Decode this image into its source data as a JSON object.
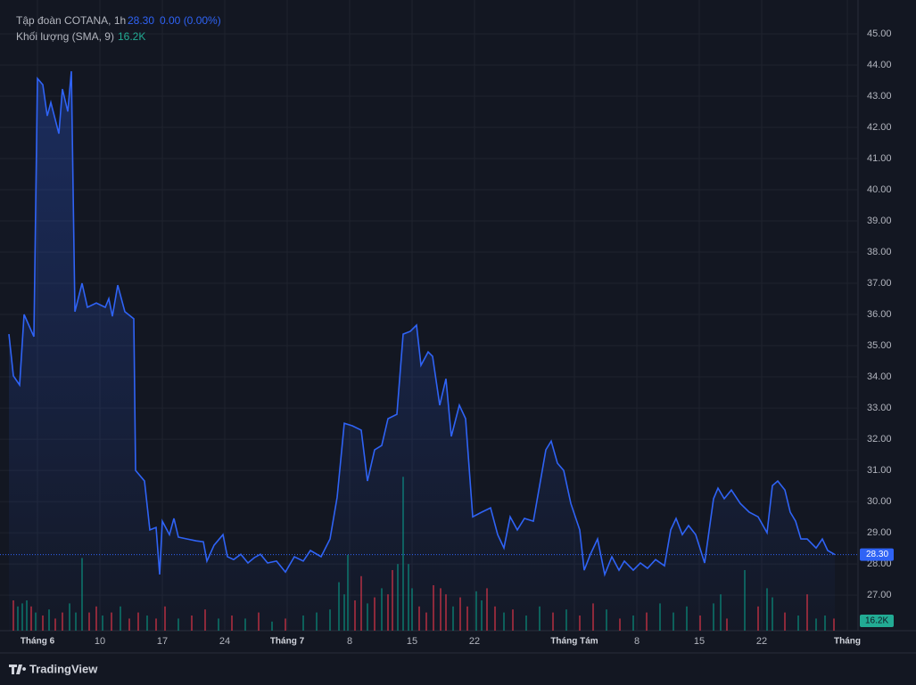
{
  "chart_data": {
    "type": "line",
    "title": "Tập đoàn COTANA, 1h",
    "last_price": {
      "value": 28.3,
      "label": "28.30"
    },
    "change": "0.00 (0.00%)",
    "color": "#2f63f5",
    "grid": true,
    "xlim": [
      0,
      952
    ],
    "ylim": [
      25.86,
      45.8
    ],
    "yticks": [
      {
        "value": 27,
        "label": "27.00"
      },
      {
        "value": 28,
        "label": "28.00"
      },
      {
        "value": 29,
        "label": "29.00"
      },
      {
        "value": 30,
        "label": "30.00"
      },
      {
        "value": 31,
        "label": "31.00"
      },
      {
        "value": 32,
        "label": "32.00"
      },
      {
        "value": 33,
        "label": "33.00"
      },
      {
        "value": 34,
        "label": "34.00"
      },
      {
        "value": 35,
        "label": "35.00"
      },
      {
        "value": 36,
        "label": "36.00"
      },
      {
        "value": 37,
        "label": "37.00"
      },
      {
        "value": 38,
        "label": "38.00"
      },
      {
        "value": 39,
        "label": "39.00"
      },
      {
        "value": 40,
        "label": "40.00"
      },
      {
        "value": 41,
        "label": "41.00"
      },
      {
        "value": 42,
        "label": "42.00"
      },
      {
        "value": 43,
        "label": "43.00"
      },
      {
        "value": 44,
        "label": "44.00"
      },
      {
        "value": 45,
        "label": "45.00"
      }
    ],
    "xticks": [
      {
        "value": 32,
        "label": "Tháng 6"
      },
      {
        "value": 102,
        "label": "10"
      },
      {
        "value": 172,
        "label": "17"
      },
      {
        "value": 242,
        "label": "24"
      },
      {
        "value": 312,
        "label": "Tháng 7"
      },
      {
        "value": 382,
        "label": "8"
      },
      {
        "value": 452,
        "label": "15"
      },
      {
        "value": 522,
        "label": "22"
      },
      {
        "value": 634,
        "label": "Tháng Tám"
      },
      {
        "value": 704,
        "label": "8"
      },
      {
        "value": 774,
        "label": "15"
      },
      {
        "value": 844,
        "label": "22"
      },
      {
        "value": 940,
        "label": "Tháng"
      }
    ],
    "x": [
      0,
      5,
      12,
      17,
      28,
      32,
      38,
      43,
      47,
      56,
      60,
      66,
      70,
      74,
      82,
      88,
      98,
      108,
      112,
      116,
      122,
      130,
      140,
      142,
      152,
      158,
      165,
      169,
      172,
      180,
      185,
      190,
      200,
      210,
      218,
      222,
      230,
      240,
      245,
      252,
      260,
      268,
      275,
      282,
      290,
      300,
      310,
      320,
      330,
      338,
      350,
      360,
      368,
      376,
      385,
      395,
      402,
      410,
      418,
      425,
      435,
      442,
      450,
      457,
      462,
      470,
      475,
      483,
      490,
      496,
      505,
      512,
      520,
      530,
      540,
      548,
      555,
      562,
      570,
      578,
      588,
      595,
      602,
      608,
      615,
      622,
      630,
      640,
      645,
      652,
      660,
      668,
      676,
      684,
      690,
      700,
      708,
      716,
      725,
      735,
      742,
      748,
      755,
      762,
      770,
      780,
      790,
      795,
      802,
      810,
      820,
      830,
      840,
      850,
      856,
      862,
      870,
      876,
      882,
      888,
      895,
      905,
      912,
      918,
      926
    ],
    "values": [
      35.37,
      34.03,
      33.74,
      36.0,
      35.29,
      43.57,
      43.37,
      42.37,
      42.8,
      41.8,
      43.23,
      42.51,
      43.8,
      36.09,
      37.0,
      36.23,
      36.37,
      36.23,
      36.51,
      35.94,
      36.94,
      36.09,
      35.86,
      31.0,
      30.66,
      29.09,
      29.17,
      27.66,
      29.37,
      28.94,
      29.46,
      28.86,
      28.8,
      28.74,
      28.71,
      28.09,
      28.6,
      28.94,
      28.23,
      28.14,
      28.31,
      28.03,
      28.2,
      28.31,
      28.03,
      28.09,
      27.74,
      28.23,
      28.09,
      28.43,
      28.23,
      28.8,
      30.14,
      32.51,
      32.43,
      32.29,
      30.66,
      31.66,
      31.8,
      32.66,
      32.8,
      35.37,
      35.46,
      35.66,
      34.37,
      34.8,
      34.66,
      33.09,
      33.94,
      32.09,
      33.09,
      32.66,
      29.51,
      29.66,
      29.8,
      28.94,
      28.51,
      29.51,
      29.09,
      29.46,
      29.37,
      30.51,
      31.66,
      31.94,
      31.23,
      31.0,
      29.94,
      29.09,
      27.8,
      28.31,
      28.8,
      27.66,
      28.23,
      27.8,
      28.09,
      27.8,
      28.03,
      27.86,
      28.14,
      27.94,
      29.09,
      29.46,
      28.94,
      29.23,
      28.94,
      28.03,
      30.09,
      30.43,
      30.09,
      30.37,
      29.94,
      29.66,
      29.51,
      29.0,
      30.51,
      30.66,
      30.37,
      29.66,
      29.37,
      28.8,
      28.8,
      28.51,
      28.8,
      28.43,
      28.3
    ],
    "volume": {
      "name": "Khối lượng (SMA, 9)",
      "sma": {
        "value": 16.2,
        "label": "16.2K"
      },
      "y2lim": [
        0,
        300
      ],
      "x": [
        5,
        10,
        15,
        20,
        25,
        30,
        38,
        45,
        52,
        60,
        68,
        75,
        82,
        90,
        98,
        105,
        115,
        125,
        135,
        145,
        155,
        165,
        175,
        190,
        205,
        220,
        235,
        250,
        265,
        280,
        295,
        310,
        330,
        345,
        360,
        370,
        376,
        380,
        388,
        395,
        402,
        410,
        418,
        425,
        430,
        436,
        442,
        448,
        452,
        460,
        468,
        476,
        484,
        490,
        498,
        506,
        514,
        524,
        530,
        536,
        545,
        555,
        565,
        580,
        595,
        610,
        625,
        640,
        655,
        670,
        685,
        700,
        715,
        730,
        745,
        760,
        775,
        790,
        798,
        805,
        825,
        840,
        850,
        856,
        870,
        885,
        895,
        905,
        915,
        925
      ],
      "values": [
        50,
        40,
        45,
        50,
        40,
        30,
        25,
        35,
        20,
        30,
        45,
        30,
        120,
        30,
        40,
        25,
        30,
        40,
        20,
        30,
        25,
        20,
        40,
        20,
        25,
        35,
        20,
        25,
        20,
        30,
        15,
        20,
        25,
        30,
        35,
        80,
        60,
        125,
        50,
        90,
        45,
        55,
        70,
        60,
        100,
        110,
        254,
        110,
        70,
        40,
        30,
        75,
        70,
        60,
        40,
        55,
        40,
        65,
        50,
        70,
        40,
        30,
        35,
        25,
        40,
        30,
        35,
        25,
        45,
        35,
        20,
        25,
        30,
        45,
        30,
        40,
        25,
        45,
        60,
        20,
        100,
        40,
        70,
        55,
        30,
        25,
        60,
        20,
        25,
        20
      ],
      "colors": [
        "#f23645",
        "#089981",
        "#089981",
        "#089981",
        "#f23645",
        "#089981",
        "#f23645",
        "#089981",
        "#f23645",
        "#f23645",
        "#089981",
        "#089981",
        "#089981",
        "#f23645",
        "#f23645",
        "#089981",
        "#f23645",
        "#089981",
        "#f23645",
        "#f23645",
        "#089981",
        "#f23645",
        "#f23645",
        "#089981",
        "#f23645",
        "#f23645",
        "#089981",
        "#f23645",
        "#089981",
        "#f23645",
        "#089981",
        "#f23645",
        "#089981",
        "#089981",
        "#089981",
        "#089981",
        "#089981",
        "#089981",
        "#f23645",
        "#f23645",
        "#089981",
        "#f23645",
        "#089981",
        "#f23645",
        "#f23645",
        "#089981",
        "#089981",
        "#089981",
        "#089981",
        "#f23645",
        "#f23645",
        "#f23645",
        "#f23645",
        "#f23645",
        "#089981",
        "#f23645",
        "#f23645",
        "#089981",
        "#089981",
        "#f23645",
        "#f23645",
        "#089981",
        "#f23645",
        "#089981",
        "#089981",
        "#f23645",
        "#089981",
        "#f23645",
        "#f23645",
        "#089981",
        "#f23645",
        "#089981",
        "#f23645",
        "#089981",
        "#089981",
        "#089981",
        "#f23645",
        "#089981",
        "#089981",
        "#f23645",
        "#089981",
        "#f23645",
        "#089981",
        "#089981",
        "#f23645",
        "#089981",
        "#f23645",
        "#089981",
        "#089981",
        "#f23645"
      ]
    },
    "footer": "TradingView"
  }
}
